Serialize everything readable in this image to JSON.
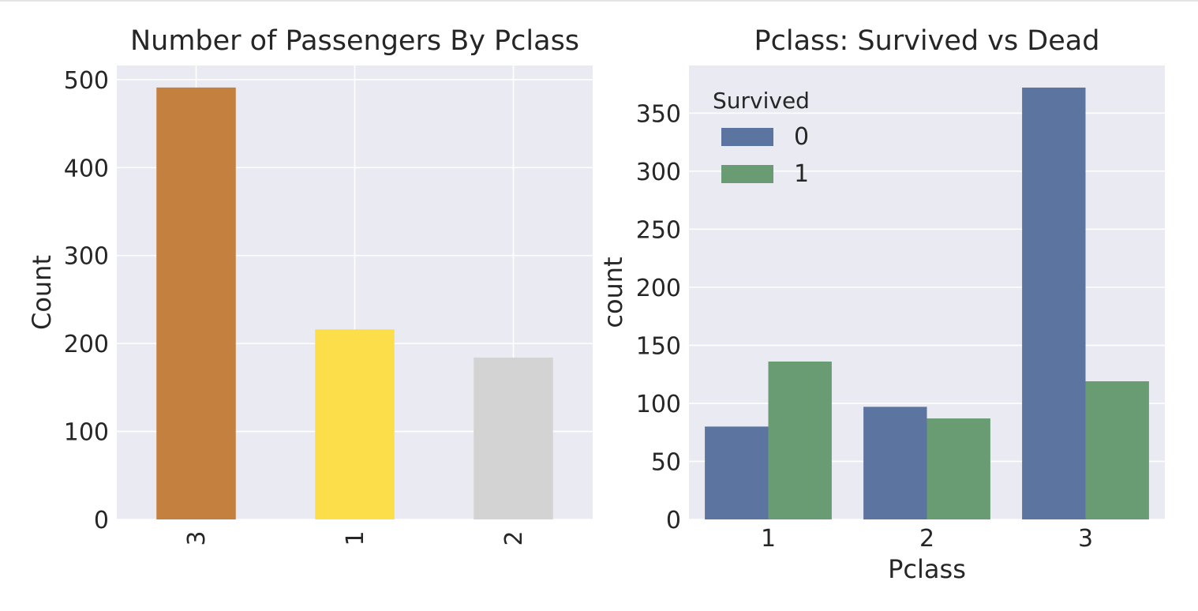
{
  "chart_data": [
    {
      "type": "bar",
      "title": "Number of Passengers By Pclass",
      "xlabel": "",
      "ylabel": "Count",
      "categories": [
        "3",
        "1",
        "2"
      ],
      "values": [
        491,
        216,
        184
      ],
      "bar_colors": [
        "#c4803f",
        "#fcdd4a",
        "#d3d3d3"
      ],
      "ylim": [
        0,
        516
      ],
      "yticks": [
        0,
        100,
        200,
        300,
        400,
        500
      ],
      "xtick_rotation": "vertical",
      "grid": true,
      "background": "#eaeaf2"
    },
    {
      "type": "bar",
      "title": "Pclass: Survived vs Dead",
      "xlabel": "Pclass",
      "ylabel": "count",
      "categories": [
        "1",
        "2",
        "3"
      ],
      "series": [
        {
          "name": "0",
          "values": [
            80,
            97,
            372
          ],
          "color": "#5c74a0"
        },
        {
          "name": "1",
          "values": [
            136,
            87,
            119
          ],
          "color": "#6a9c73"
        }
      ],
      "legend": {
        "title": "Survived",
        "placement": "top-left"
      },
      "ylim": [
        0,
        391
      ],
      "yticks": [
        0,
        50,
        100,
        150,
        200,
        250,
        300,
        350
      ],
      "grid": true,
      "background": "#eaeaf2"
    }
  ]
}
